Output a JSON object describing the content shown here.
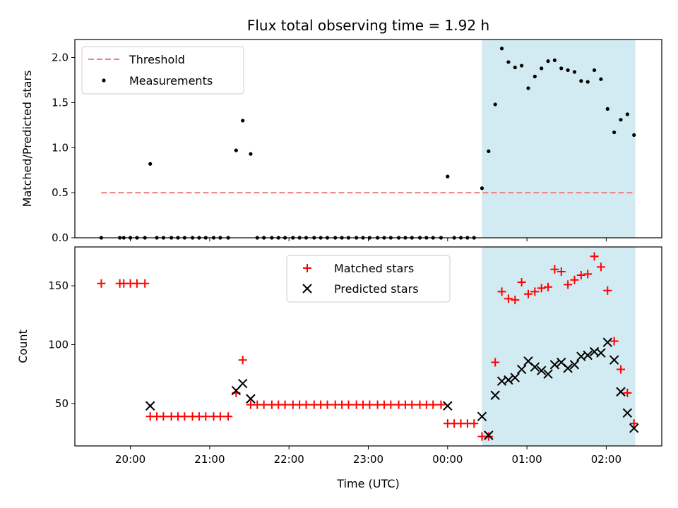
{
  "colors": {
    "threshold": "#f08080",
    "measurement": "#000000",
    "matched": "#ff0000",
    "predicted": "#000000",
    "shade": "#add8e6"
  },
  "chart_data": [
    {
      "type": "scatter",
      "title": "Flux total observing time = 1.92 h",
      "ylabel": "Matched/Predicted stars",
      "xlim": [
        "19:18",
        "02:42"
      ],
      "ylim": [
        0,
        2.2
      ],
      "yticks": [
        0.0,
        0.5,
        1.0,
        1.5,
        2.0
      ],
      "ytick_labels": [
        "0.0",
        "0.5",
        "1.0",
        "1.5",
        "2.0"
      ],
      "shaded_region": {
        "from": "00:26",
        "to": "02:22"
      },
      "legend": {
        "position": "upper-left",
        "entries": [
          "Threshold",
          "Measurements"
        ]
      },
      "series": [
        {
          "name": "Threshold",
          "style": "dashed-line",
          "points": [
            [
              "19:38",
              0.5
            ],
            [
              "02:22",
              0.5
            ]
          ]
        },
        {
          "name": "Measurements",
          "style": "dots",
          "points": [
            [
              "19:38",
              0
            ],
            [
              "19:52",
              0
            ],
            [
              "19:55",
              0
            ],
            [
              "20:00",
              0
            ],
            [
              "20:05",
              0
            ],
            [
              "20:11",
              0
            ],
            [
              "20:15",
              0.82
            ],
            [
              "20:20",
              0
            ],
            [
              "20:25",
              0
            ],
            [
              "20:31",
              0
            ],
            [
              "20:36",
              0
            ],
            [
              "20:41",
              0
            ],
            [
              "20:47",
              0
            ],
            [
              "20:52",
              0
            ],
            [
              "20:57",
              0
            ],
            [
              "21:03",
              0
            ],
            [
              "21:08",
              0
            ],
            [
              "21:14",
              0
            ],
            [
              "21:20",
              0.97
            ],
            [
              "21:25",
              1.3
            ],
            [
              "21:31",
              0.93
            ],
            [
              "21:36",
              0
            ],
            [
              "21:41",
              0
            ],
            [
              "21:47",
              0
            ],
            [
              "21:52",
              0
            ],
            [
              "21:57",
              0
            ],
            [
              "22:03",
              0
            ],
            [
              "22:08",
              0
            ],
            [
              "22:13",
              0
            ],
            [
              "22:19",
              0
            ],
            [
              "22:24",
              0
            ],
            [
              "22:29",
              0
            ],
            [
              "22:35",
              0
            ],
            [
              "22:40",
              0
            ],
            [
              "22:45",
              0
            ],
            [
              "22:51",
              0
            ],
            [
              "22:56",
              0
            ],
            [
              "23:01",
              0
            ],
            [
              "23:07",
              0
            ],
            [
              "23:12",
              0
            ],
            [
              "23:17",
              0
            ],
            [
              "23:23",
              0
            ],
            [
              "23:28",
              0
            ],
            [
              "23:33",
              0
            ],
            [
              "23:39",
              0
            ],
            [
              "23:44",
              0
            ],
            [
              "23:49",
              0
            ],
            [
              "23:55",
              0
            ],
            [
              "00:00",
              0.68
            ],
            [
              "00:05",
              0
            ],
            [
              "00:10",
              0
            ],
            [
              "00:15",
              0
            ],
            [
              "00:20",
              0
            ],
            [
              "00:26",
              0.55
            ],
            [
              "00:31",
              0.96
            ],
            [
              "00:36",
              1.48
            ],
            [
              "00:41",
              2.1
            ],
            [
              "00:46",
              1.95
            ],
            [
              "00:51",
              1.89
            ],
            [
              "00:56",
              1.91
            ],
            [
              "01:01",
              1.66
            ],
            [
              "01:06",
              1.79
            ],
            [
              "01:11",
              1.88
            ],
            [
              "01:16",
              1.96
            ],
            [
              "01:21",
              1.97
            ],
            [
              "01:26",
              1.88
            ],
            [
              "01:31",
              1.86
            ],
            [
              "01:36",
              1.84
            ],
            [
              "01:41",
              1.74
            ],
            [
              "01:46",
              1.73
            ],
            [
              "01:51",
              1.86
            ],
            [
              "01:56",
              1.76
            ],
            [
              "02:01",
              1.43
            ],
            [
              "02:06",
              1.17
            ],
            [
              "02:11",
              1.31
            ],
            [
              "02:16",
              1.37
            ],
            [
              "02:21",
              1.14
            ]
          ]
        }
      ]
    },
    {
      "type": "scatter",
      "xlabel": "Time (UTC)",
      "ylabel": "Count",
      "xlim": [
        "19:18",
        "02:42"
      ],
      "ylim": [
        14,
        183
      ],
      "yticks": [
        50,
        100,
        150
      ],
      "ytick_labels": [
        "50",
        "100",
        "150"
      ],
      "xticks": [
        "20:00",
        "21:00",
        "22:00",
        "23:00",
        "00:00",
        "01:00",
        "02:00"
      ],
      "xtick_labels": [
        "20:00",
        "21:00",
        "22:00",
        "23:00",
        "00:00",
        "01:00",
        "02:00"
      ],
      "shaded_region": {
        "from": "00:26",
        "to": "02:22"
      },
      "legend": {
        "position": "upper-center",
        "entries": [
          "Matched stars",
          "Predicted stars"
        ]
      },
      "series": [
        {
          "name": "Matched stars",
          "marker": "plus",
          "points": [
            [
              "19:38",
              152
            ],
            [
              "19:52",
              152
            ],
            [
              "19:55",
              152
            ],
            [
              "20:00",
              152
            ],
            [
              "20:05",
              152
            ],
            [
              "20:11",
              152
            ],
            [
              "20:15",
              39
            ],
            [
              "20:20",
              39
            ],
            [
              "20:25",
              39
            ],
            [
              "20:31",
              39
            ],
            [
              "20:36",
              39
            ],
            [
              "20:41",
              39
            ],
            [
              "20:47",
              39
            ],
            [
              "20:52",
              39
            ],
            [
              "20:57",
              39
            ],
            [
              "21:03",
              39
            ],
            [
              "21:08",
              39
            ],
            [
              "21:14",
              39
            ],
            [
              "21:20",
              59
            ],
            [
              "21:25",
              87
            ],
            [
              "21:31",
              49
            ],
            [
              "21:36",
              49
            ],
            [
              "21:41",
              49
            ],
            [
              "21:47",
              49
            ],
            [
              "21:52",
              49
            ],
            [
              "21:57",
              49
            ],
            [
              "22:03",
              49
            ],
            [
              "22:08",
              49
            ],
            [
              "22:13",
              49
            ],
            [
              "22:19",
              49
            ],
            [
              "22:24",
              49
            ],
            [
              "22:29",
              49
            ],
            [
              "22:35",
              49
            ],
            [
              "22:40",
              49
            ],
            [
              "22:45",
              49
            ],
            [
              "22:51",
              49
            ],
            [
              "22:56",
              49
            ],
            [
              "23:01",
              49
            ],
            [
              "23:07",
              49
            ],
            [
              "23:12",
              49
            ],
            [
              "23:17",
              49
            ],
            [
              "23:23",
              49
            ],
            [
              "23:28",
              49
            ],
            [
              "23:33",
              49
            ],
            [
              "23:39",
              49
            ],
            [
              "23:44",
              49
            ],
            [
              "23:49",
              49
            ],
            [
              "23:55",
              49
            ],
            [
              "00:00",
              33
            ],
            [
              "00:05",
              33
            ],
            [
              "00:10",
              33
            ],
            [
              "00:15",
              33
            ],
            [
              "00:20",
              33
            ],
            [
              "00:26",
              22
            ],
            [
              "00:31",
              22
            ],
            [
              "00:36",
              85
            ],
            [
              "00:41",
              145
            ],
            [
              "00:46",
              139
            ],
            [
              "00:51",
              138
            ],
            [
              "00:56",
              153
            ],
            [
              "01:01",
              143
            ],
            [
              "01:06",
              145
            ],
            [
              "01:11",
              148
            ],
            [
              "01:16",
              149
            ],
            [
              "01:21",
              164
            ],
            [
              "01:26",
              162
            ],
            [
              "01:31",
              151
            ],
            [
              "01:36",
              155
            ],
            [
              "01:41",
              159
            ],
            [
              "01:46",
              160
            ],
            [
              "01:51",
              175
            ],
            [
              "01:56",
              166
            ],
            [
              "02:01",
              146
            ],
            [
              "02:06",
              103
            ],
            [
              "02:11",
              79
            ],
            [
              "02:16",
              59
            ],
            [
              "02:21",
              33
            ]
          ]
        },
        {
          "name": "Predicted stars",
          "marker": "x",
          "points": [
            [
              "20:15",
              48
            ],
            [
              "21:20",
              61
            ],
            [
              "21:25",
              67
            ],
            [
              "21:31",
              54
            ],
            [
              "00:00",
              48
            ],
            [
              "00:26",
              39
            ],
            [
              "00:31",
              23
            ],
            [
              "00:36",
              57
            ],
            [
              "00:41",
              69
            ],
            [
              "00:46",
              70
            ],
            [
              "00:51",
              72
            ],
            [
              "00:56",
              79
            ],
            [
              "01:01",
              86
            ],
            [
              "01:06",
              81
            ],
            [
              "01:11",
              78
            ],
            [
              "01:16",
              75
            ],
            [
              "01:21",
              83
            ],
            [
              "01:26",
              85
            ],
            [
              "01:31",
              80
            ],
            [
              "01:36",
              83
            ],
            [
              "01:41",
              90
            ],
            [
              "01:46",
              91
            ],
            [
              "01:51",
              94
            ],
            [
              "01:56",
              93
            ],
            [
              "02:01",
              102
            ],
            [
              "02:06",
              87
            ],
            [
              "02:11",
              60
            ],
            [
              "02:16",
              42
            ],
            [
              "02:21",
              29
            ]
          ]
        }
      ]
    }
  ]
}
